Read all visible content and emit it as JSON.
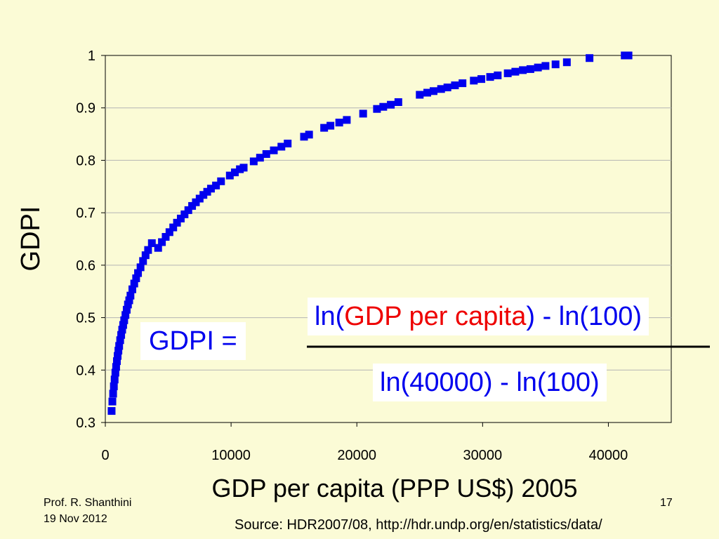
{
  "chart_data": {
    "type": "scatter",
    "title": "",
    "xlabel": "GDP per capita (PPP US$) 2005",
    "ylabel": "GDPI",
    "xlim": [
      0,
      45000
    ],
    "ylim": [
      0.3,
      1
    ],
    "xticks": [
      0,
      10000,
      20000,
      30000,
      40000
    ],
    "yticks": [
      0.3,
      0.4,
      0.5,
      0.6,
      0.7,
      0.8,
      0.9,
      1
    ],
    "grid": "horizontal",
    "marker": "square",
    "color": "#0000ee",
    "legend": "none",
    "series": [
      {
        "x": [
          500,
          560,
          620,
          680,
          740,
          800,
          860,
          920,
          980,
          1040,
          1100,
          1180,
          1260,
          1340,
          1420,
          1500,
          1600,
          1700,
          1800,
          1900,
          2000,
          2150,
          2300,
          2450,
          2600,
          2800,
          3000,
          3200,
          3400,
          3700,
          4200,
          4500,
          4800,
          5100,
          5400,
          5700,
          6000,
          6300,
          6600,
          6900,
          7200,
          7500,
          7800,
          8100,
          8400,
          8800,
          9200,
          9900,
          10300,
          10700,
          11000,
          11800,
          12300,
          12800,
          13400,
          14000,
          14500,
          15800,
          16200,
          17400,
          17900,
          18600,
          19200,
          20500,
          21600,
          22100,
          22700,
          23300,
          25000,
          25600,
          26100,
          26700,
          27200,
          27800,
          28400,
          29300,
          29900,
          30600,
          31200,
          32000,
          32600,
          33200,
          33800,
          34400,
          35000,
          35800,
          36700,
          38500,
          41300,
          41600
        ],
        "y": [
          0.322,
          0.34,
          0.355,
          0.369,
          0.382,
          0.395,
          0.406,
          0.417,
          0.427,
          0.437,
          0.446,
          0.457,
          0.467,
          0.477,
          0.486,
          0.495,
          0.505,
          0.515,
          0.525,
          0.533,
          0.542,
          0.554,
          0.565,
          0.575,
          0.585,
          0.596,
          0.608,
          0.619,
          0.629,
          0.642,
          0.633,
          0.644,
          0.654,
          0.663,
          0.672,
          0.681,
          0.689,
          0.697,
          0.705,
          0.713,
          0.72,
          0.727,
          0.734,
          0.74,
          0.746,
          0.752,
          0.76,
          0.771,
          0.777,
          0.783,
          0.786,
          0.798,
          0.805,
          0.812,
          0.819,
          0.826,
          0.832,
          0.845,
          0.849,
          0.862,
          0.866,
          0.872,
          0.877,
          0.889,
          0.898,
          0.902,
          0.906,
          0.911,
          0.925,
          0.929,
          0.932,
          0.936,
          0.939,
          0.943,
          0.947,
          0.952,
          0.955,
          0.959,
          0.962,
          0.966,
          0.969,
          0.972,
          0.974,
          0.977,
          0.98,
          0.983,
          0.987,
          0.995,
          1.0,
          1.0
        ]
      }
    ]
  },
  "formula": {
    "lhs": "GDPI =",
    "num_open": "ln(",
    "num_var1": "GDP",
    "num_var2": "per capita",
    "num_close": ") - ln(100)",
    "den": "ln(40000) - ln(100)"
  },
  "footer": {
    "author": "Prof. R. Shanthini",
    "date": "19 Nov 2012",
    "page": "17",
    "source": "Source: HDR2007/08, http://hdr.undp.org/en/statistics/data/"
  },
  "colors": {
    "background": "#fbfbd6",
    "accent": "#0000ee",
    "highlight": "#ee0000"
  }
}
